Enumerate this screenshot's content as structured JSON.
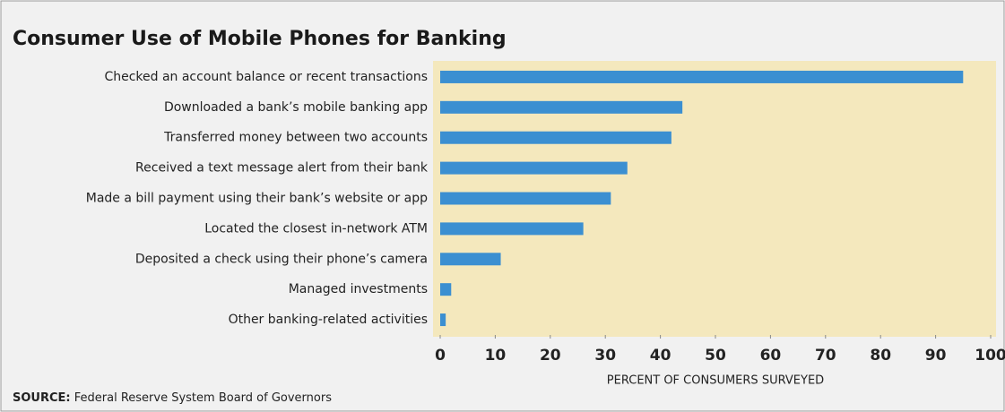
{
  "chart_data": {
    "type": "bar",
    "orientation": "horizontal",
    "title": "Consumer Use of Mobile Phones for Banking",
    "categories": [
      "Checked an account balance or recent transactions",
      "Downloaded a bank’s mobile banking app",
      "Transferred money between two accounts",
      "Received a text message alert from their bank",
      "Made a bill payment using their bank’s website or app",
      "Located the closest in-network ATM",
      "Deposited a check using their phone’s camera",
      "Managed investments",
      "Other banking-related activities"
    ],
    "values": [
      95,
      44,
      42,
      34,
      31,
      26,
      11,
      2,
      1
    ],
    "color": "#3b8fd1",
    "xlim": [
      0,
      100
    ],
    "xticks": [
      0,
      10,
      20,
      30,
      40,
      50,
      60,
      70,
      80,
      90,
      100
    ],
    "x_label": "PERCENT OF CONSUMERS SURVEYED",
    "source_label": "SOURCE:",
    "source": "Federal Reserve System Board of Governors"
  }
}
